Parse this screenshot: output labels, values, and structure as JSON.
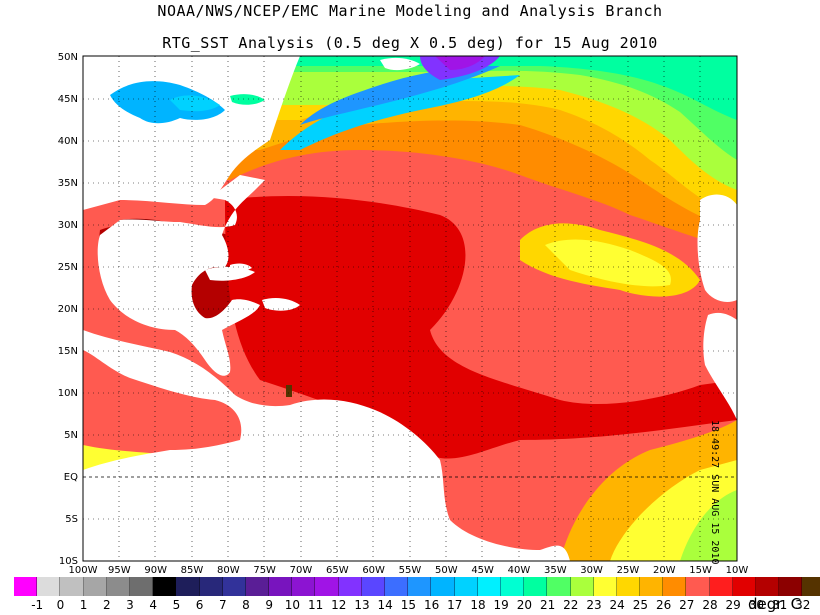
{
  "header": {
    "line1": "NOAA/NWS/NCEP/EMC Marine Modeling and Analysis Branch",
    "line2": "RTG_SST Analysis (0.5 deg X 0.5 deg) for 15 Aug 2010"
  },
  "map": {
    "lat_labels": [
      "50N",
      "45N",
      "40N",
      "35N",
      "30N",
      "25N",
      "20N",
      "15N",
      "10N",
      "5N",
      "EQ",
      "5S",
      "10S"
    ],
    "lon_labels": [
      "100W",
      "95W",
      "90W",
      "85W",
      "80W",
      "75W",
      "70W",
      "65W",
      "60W",
      "55W",
      "50W",
      "45W",
      "40W",
      "35W",
      "30W",
      "25W",
      "20W",
      "15W",
      "10W"
    ],
    "timestamp": "18:49:27  SUN AUG 15 2010",
    "land_color": "#ffffff",
    "grid_style": "dotted"
  },
  "legend": {
    "labels": [
      "-1",
      "0",
      "1",
      "2",
      "3",
      "4",
      "5",
      "6",
      "7",
      "8",
      "9",
      "10",
      "11",
      "12",
      "13",
      "14",
      "15",
      "16",
      "17",
      "18",
      "19",
      "20",
      "21",
      "22",
      "23",
      "24",
      "25",
      "26",
      "27",
      "28",
      "29",
      "30",
      "31",
      "32"
    ],
    "colors": [
      "#ff00ff",
      "#dcdcdc",
      "#c0c0c0",
      "#a6a6a6",
      "#8c8c8c",
      "#6e6e6e",
      "#000000",
      "#1e1e5a",
      "#28287a",
      "#32329a",
      "#5a1e96",
      "#7814be",
      "#8c14d2",
      "#a014e6",
      "#8232ff",
      "#5a46ff",
      "#3c6eff",
      "#1e96ff",
      "#00b4ff",
      "#00d2ff",
      "#00f0ff",
      "#00ffd2",
      "#00ffa0",
      "#50ff64",
      "#aaff3c",
      "#ffff32",
      "#ffd700",
      "#ffb400",
      "#ff8c00",
      "#ff5a50",
      "#ff1e1e",
      "#e10000",
      "#b40000",
      "#8c0000",
      "#553300"
    ],
    "units": "degr. C"
  }
}
